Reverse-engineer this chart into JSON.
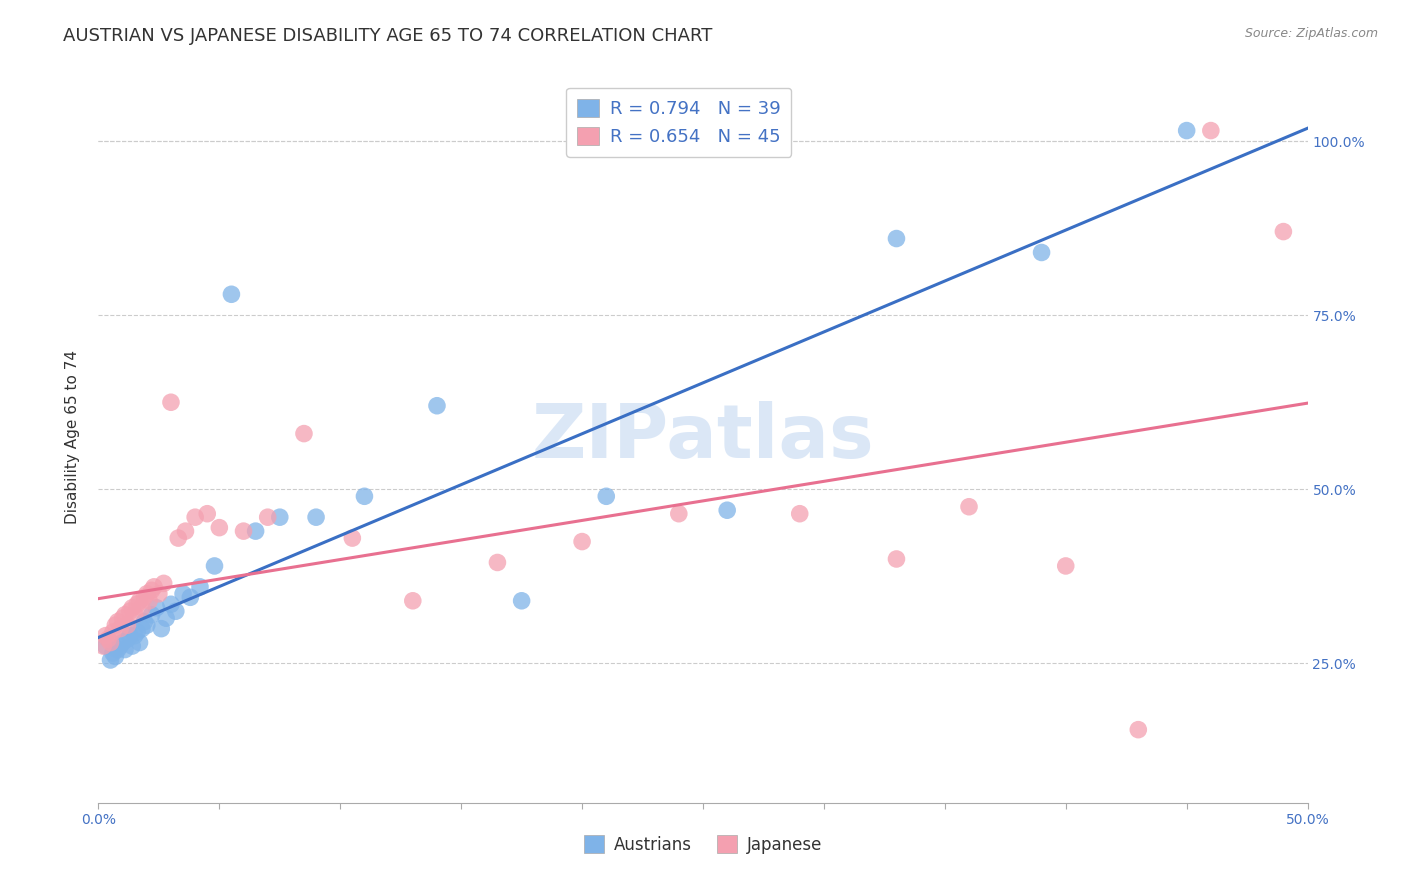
{
  "title": "AUSTRIAN VS JAPANESE DISABILITY AGE 65 TO 74 CORRELATION CHART",
  "source": "Source: ZipAtlas.com",
  "ylabel": "Disability Age 65 to 74",
  "xlabel": "",
  "xlim": [
    0.0,
    0.5
  ],
  "ylim": [
    0.05,
    1.1
  ],
  "xtick_vals": [
    0.0,
    0.05,
    0.1,
    0.15,
    0.2,
    0.25,
    0.3,
    0.35,
    0.4,
    0.45,
    0.5
  ],
  "xtick_labels_show": {
    "0.0": "0.0%",
    "0.50": "50.0%"
  },
  "ytick_positions": [
    0.25,
    0.5,
    0.75,
    1.0
  ],
  "right_ytick_labels": [
    "25.0%",
    "50.0%",
    "75.0%",
    "100.0%"
  ],
  "watermark": "ZIPatlas",
  "austrians_R": 0.794,
  "austrians_N": 39,
  "japanese_R": 0.654,
  "japanese_N": 45,
  "austrians_color": "#7fb3e8",
  "japanese_color": "#f4a0b0",
  "austrians_line_color": "#3a6fc4",
  "japanese_line_color": "#e87090",
  "austrians_x": [
    0.003,
    0.005,
    0.006,
    0.007,
    0.008,
    0.009,
    0.01,
    0.011,
    0.012,
    0.013,
    0.014,
    0.015,
    0.016,
    0.017,
    0.018,
    0.019,
    0.02,
    0.022,
    0.024,
    0.026,
    0.028,
    0.03,
    0.032,
    0.035,
    0.038,
    0.042,
    0.048,
    0.055,
    0.065,
    0.075,
    0.09,
    0.11,
    0.14,
    0.175,
    0.21,
    0.26,
    0.33,
    0.39,
    0.45
  ],
  "austrians_y": [
    0.275,
    0.255,
    0.265,
    0.26,
    0.27,
    0.275,
    0.28,
    0.27,
    0.285,
    0.29,
    0.275,
    0.29,
    0.295,
    0.28,
    0.3,
    0.31,
    0.305,
    0.32,
    0.33,
    0.3,
    0.315,
    0.335,
    0.325,
    0.35,
    0.345,
    0.36,
    0.39,
    0.78,
    0.44,
    0.46,
    0.46,
    0.49,
    0.62,
    0.34,
    0.49,
    0.47,
    0.86,
    0.84,
    1.015
  ],
  "japanese_x": [
    0.002,
    0.003,
    0.004,
    0.005,
    0.006,
    0.007,
    0.008,
    0.009,
    0.01,
    0.011,
    0.012,
    0.013,
    0.014,
    0.015,
    0.016,
    0.017,
    0.018,
    0.019,
    0.02,
    0.021,
    0.022,
    0.023,
    0.025,
    0.027,
    0.03,
    0.033,
    0.036,
    0.04,
    0.045,
    0.05,
    0.06,
    0.07,
    0.085,
    0.105,
    0.13,
    0.165,
    0.2,
    0.24,
    0.29,
    0.33,
    0.36,
    0.4,
    0.43,
    0.46,
    0.49
  ],
  "japanese_y": [
    0.275,
    0.29,
    0.285,
    0.28,
    0.295,
    0.305,
    0.31,
    0.3,
    0.315,
    0.32,
    0.305,
    0.325,
    0.33,
    0.32,
    0.335,
    0.34,
    0.33,
    0.345,
    0.35,
    0.34,
    0.355,
    0.36,
    0.35,
    0.365,
    0.625,
    0.43,
    0.44,
    0.46,
    0.465,
    0.445,
    0.44,
    0.46,
    0.58,
    0.43,
    0.34,
    0.395,
    0.425,
    0.465,
    0.465,
    0.4,
    0.475,
    0.39,
    0.155,
    1.015,
    0.87
  ],
  "background_color": "#ffffff",
  "grid_color": "#cccccc",
  "title_fontsize": 13,
  "axis_fontsize": 11,
  "tick_fontsize": 10
}
